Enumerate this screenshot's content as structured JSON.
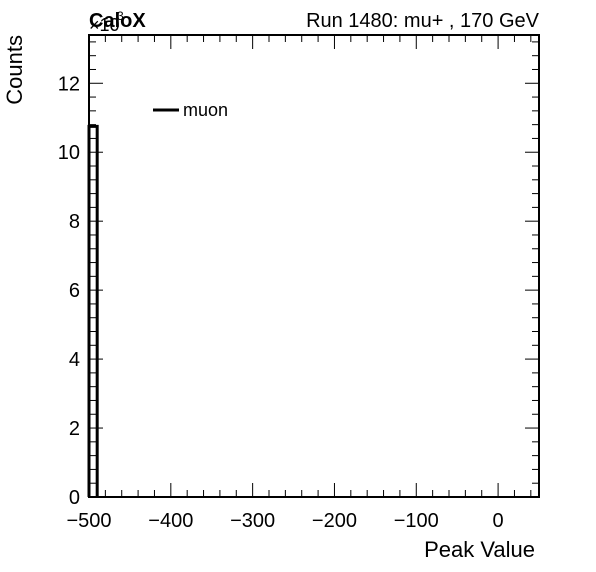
{
  "header": {
    "experiment": "CaloX",
    "run_info": "Run 1480: mu+ , 170 GeV"
  },
  "chart_data": {
    "type": "histogram",
    "xlabel": "Peak Value",
    "ylabel": "Counts",
    "y_multiplier": "×10",
    "y_multiplier_exponent": "3",
    "xlim": [
      -500,
      50
    ],
    "ylim": [
      0,
      13.4
    ],
    "y_unit_scale": 1000,
    "x_ticks": [
      -500,
      -400,
      -300,
      -200,
      -100,
      0
    ],
    "x_tick_labels": [
      "−500",
      "−400",
      "−300",
      "−200",
      "−100",
      "0"
    ],
    "y_ticks": [
      0,
      2,
      4,
      6,
      8,
      10,
      12
    ],
    "y_tick_labels": [
      "0",
      "2",
      "4",
      "6",
      "8",
      "10",
      "12"
    ],
    "bin_width": 10,
    "series": [
      {
        "name": "muon",
        "color": "#000000",
        "bins": [
          {
            "x_low": -500,
            "x_high": -490,
            "value": 10.75
          }
        ]
      }
    ],
    "legend": {
      "position": "top-left",
      "entries": [
        "muon"
      ]
    }
  }
}
